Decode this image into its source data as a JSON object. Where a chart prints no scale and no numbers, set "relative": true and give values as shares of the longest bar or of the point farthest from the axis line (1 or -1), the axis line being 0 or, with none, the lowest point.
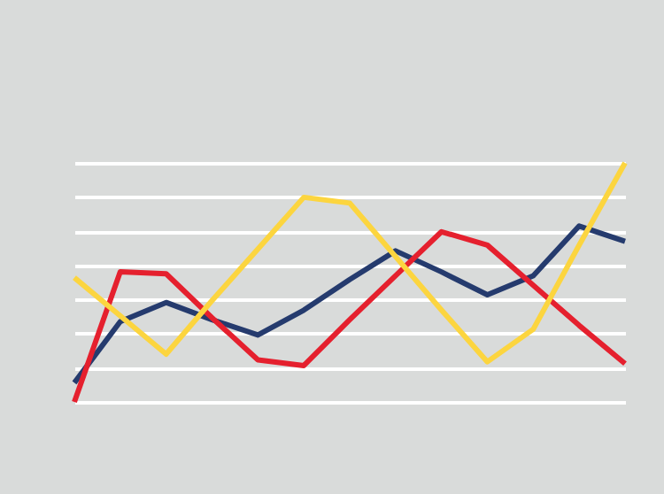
{
  "chart_data": {
    "type": "line",
    "relative": true,
    "grid": "y",
    "marker": "none",
    "line_style": "solid",
    "tick_labels": false,
    "categories": [
      null,
      null,
      null,
      null,
      null,
      null,
      null,
      null,
      null,
      null,
      null,
      null,
      null
    ],
    "series": [
      {
        "color": "#253b6e",
        "values": [
          0.08,
          0.336,
          0.416,
          0.344,
          0.28,
          0.384,
          0.512,
          0.632,
          0.544,
          0.448,
          0.528,
          0.736,
          0.672
        ]
      },
      {
        "color": "#e5202e",
        "values": [
          0,
          0.544,
          0.536,
          0.352,
          0.176,
          0.152,
          0.344,
          0.528,
          0.712,
          0.656,
          0.488,
          0.32,
          0.16
        ]
      },
      {
        "color": "#fcd53f",
        "values": [
          0.52,
          0.36,
          0.2,
          0.424,
          0.64,
          0.856,
          0.832,
          0.608,
          0.384,
          0.168,
          0.304,
          0.656,
          1
        ]
      }
    ]
  }
}
